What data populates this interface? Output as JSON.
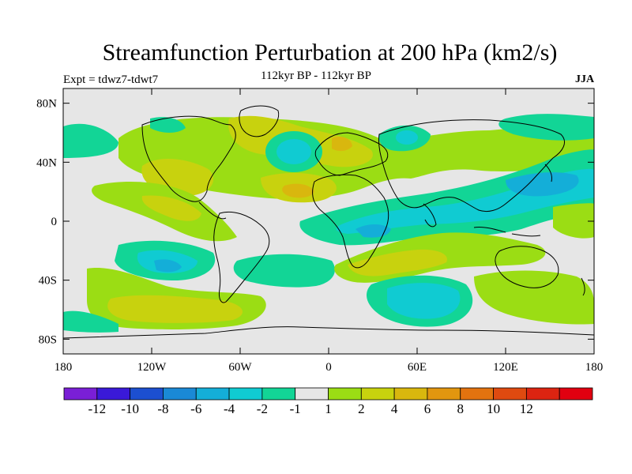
{
  "title": "Streamfunction Perturbation at 200 hPa (km2/s)",
  "experiment_label": "Expt = tdwz7-tdwt7",
  "period_label": "112kyr BP - 112kyr BP",
  "season_label": "JJA",
  "x_ticks": [
    "180",
    "120W",
    "60W",
    "0",
    "60E",
    "120E",
    "180"
  ],
  "y_ticks": [
    "80N",
    "40N",
    "0",
    "40S",
    "80S"
  ],
  "colorbar": {
    "colors": [
      "#7a1fd6",
      "#3a19d8",
      "#1c4fd0",
      "#1a89d6",
      "#14aed8",
      "#10cbd2",
      "#12d596",
      "#e6e6e6",
      "#9bdd14",
      "#c8d20e",
      "#d9b70e",
      "#e2960f",
      "#e3730f",
      "#df4a10",
      "#dc2411",
      "#e10010"
    ],
    "labels": [
      "-12",
      "-10",
      "-8",
      "-6",
      "-4",
      "-2",
      "-1",
      "1",
      "2",
      "4",
      "6",
      "8",
      "10",
      "12"
    ]
  }
}
